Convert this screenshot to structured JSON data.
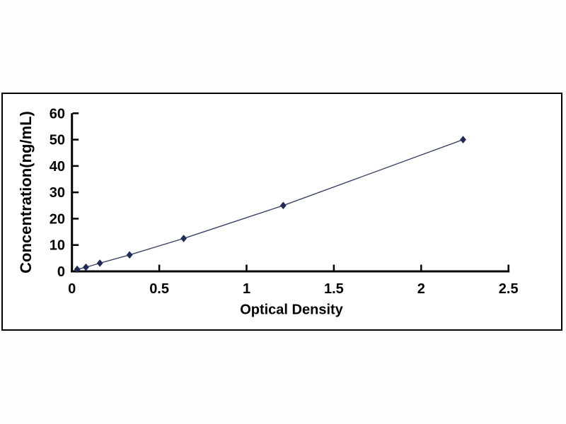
{
  "chart_data": {
    "type": "line",
    "title": "",
    "xlabel": "Optical Density",
    "ylabel": "Concentration(ng/mL)",
    "xlim": [
      0,
      2.5
    ],
    "ylim": [
      0,
      60
    ],
    "x_ticks": [
      "0",
      "0.5",
      "1",
      "1.5",
      "2",
      "2.5"
    ],
    "y_ticks": [
      "0",
      "10",
      "20",
      "30",
      "40",
      "50",
      "60"
    ],
    "grid": false,
    "legend": "none",
    "series": [
      {
        "marker": "diamond",
        "points": [
          {
            "x": 0.03,
            "y": 0.78
          },
          {
            "x": 0.08,
            "y": 1.56
          },
          {
            "x": 0.16,
            "y": 3.12
          },
          {
            "x": 0.33,
            "y": 6.25
          },
          {
            "x": 0.64,
            "y": 12.5
          },
          {
            "x": 1.21,
            "y": 25
          },
          {
            "x": 2.24,
            "y": 50
          }
        ]
      }
    ]
  },
  "colors": {
    "background": "#fdfdfd",
    "plot_background": "#ffffff",
    "frame_border": "#000000",
    "axis": "#000000",
    "tick_text": "#000000",
    "series_line": "#3a4263",
    "series_marker": "#1f2a55"
  }
}
